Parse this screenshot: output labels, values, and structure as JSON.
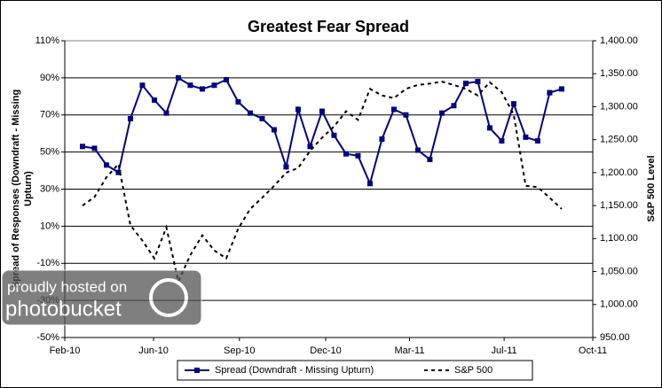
{
  "chart_data": {
    "type": "line",
    "title": "Greatest Fear Spread",
    "y_label": [
      "Spread of Responses (Downdraft - Missing",
      "Upturn)"
    ],
    "y2_label": "S&P 500 Level",
    "watermark": [
      "proudly hosted on",
      "photobucket"
    ],
    "x": [
      0,
      1,
      2,
      3,
      4,
      5,
      6,
      7,
      8,
      9,
      10,
      11,
      12,
      13,
      14,
      15,
      16,
      17,
      18,
      19,
      20,
      21,
      22,
      23,
      24,
      25,
      26,
      27,
      28,
      29,
      30,
      31,
      32,
      33,
      34,
      35,
      36,
      37,
      38,
      39,
      40
    ],
    "xlim": [
      -1.48,
      42.6
    ],
    "xticks": [
      {
        "value": -1.48,
        "label": "Feb-10"
      },
      {
        "value": 5.93,
        "label": "Jun-10"
      },
      {
        "value": 13.1,
        "label": "Sep-10"
      },
      {
        "value": 20.3,
        "label": "Dec-10"
      },
      {
        "value": 27.3,
        "label": "Mar-11"
      },
      {
        "value": 35.2,
        "label": "Jul-11"
      },
      {
        "value": 42.6,
        "label": "Oct-11"
      }
    ],
    "ylim": [
      -50,
      110
    ],
    "yticks": [
      {
        "value": -50,
        "label": "-50%"
      },
      {
        "value": -30,
        "label": "-30%"
      },
      {
        "value": -10,
        "label": "-10%"
      },
      {
        "value": 10,
        "label": "10%"
      },
      {
        "value": 30,
        "label": "30%"
      },
      {
        "value": 50,
        "label": "50%"
      },
      {
        "value": 70,
        "label": "70%"
      },
      {
        "value": 90,
        "label": "90%"
      },
      {
        "value": 110,
        "label": "110%"
      }
    ],
    "y2lim": [
      950,
      1400
    ],
    "y2ticks": [
      {
        "value": 950,
        "label": "950.00"
      },
      {
        "value": 1000,
        "label": "1,000.00"
      },
      {
        "value": 1050,
        "label": "1,050.00"
      },
      {
        "value": 1100,
        "label": "1,100.00"
      },
      {
        "value": 1150,
        "label": "1,150.00"
      },
      {
        "value": 1200,
        "label": "1,200.00"
      },
      {
        "value": 1250,
        "label": "1,250.00"
      },
      {
        "value": 1300,
        "label": "1,300.00"
      },
      {
        "value": 1350,
        "label": "1,350.00"
      },
      {
        "value": 1400,
        "label": "1,400.00"
      }
    ],
    "grid": true,
    "series": [
      {
        "name": "Spread (Downdraft - Missing Upturn)",
        "color": "#000080",
        "marker": "square",
        "values": [
          53,
          52,
          43,
          39,
          68,
          86,
          78,
          71,
          90,
          86,
          84,
          86,
          89,
          77,
          71,
          68,
          62,
          42,
          73,
          53,
          72,
          59,
          49,
          48,
          33,
          57,
          73,
          70,
          51,
          46,
          71,
          75,
          87,
          88,
          63,
          56,
          76,
          58,
          56,
          82,
          84
        ]
      },
      {
        "name": "S&P 500",
        "color": "#000000",
        "dashed": true,
        "axis": "y2",
        "values": [
          1150,
          1163,
          1193,
          1213,
          1120,
          1097,
          1070,
          1117,
          1035,
          1075,
          1105,
          1082,
          1070,
          1115,
          1145,
          1162,
          1180,
          1200,
          1207,
          1233,
          1253,
          1270,
          1293,
          1280,
          1327,
          1317,
          1313,
          1327,
          1333,
          1335,
          1338,
          1333,
          1327,
          1317,
          1337,
          1322,
          1288,
          1180,
          1178,
          1162,
          1145
        ]
      }
    ]
  }
}
